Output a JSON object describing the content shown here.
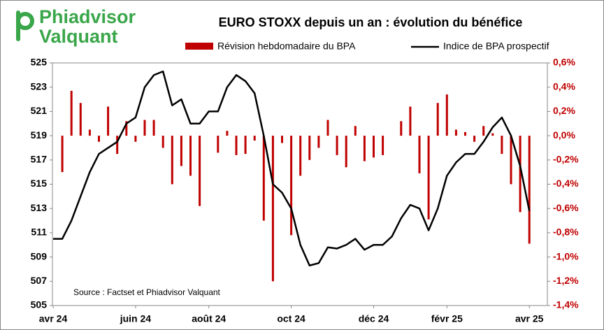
{
  "logo": {
    "line1": "Phiadvisor",
    "line2": "Valquant"
  },
  "chart_data": {
    "type": "bar_line",
    "title": "EURO STOXX depuis un an : évolution du bénéfice",
    "source": "Source : Factset et Phiadvisor Valquant",
    "categories": [
      "avr 24",
      null,
      null,
      null,
      null,
      null,
      null,
      null,
      null,
      "juin 24",
      null,
      null,
      null,
      null,
      null,
      null,
      null,
      "août 24",
      null,
      null,
      null,
      null,
      null,
      null,
      null,
      null,
      "oct 24",
      null,
      null,
      null,
      null,
      null,
      null,
      null,
      null,
      "déc 24",
      null,
      null,
      null,
      null,
      null,
      null,
      null,
      "févr 25",
      null,
      null,
      null,
      null,
      null,
      null,
      null,
      null,
      "avr 25"
    ],
    "series": [
      {
        "name": "Révision hebdomadaire du BPA",
        "type": "bar",
        "axis": "y2",
        "color": "#c00000",
        "values": [
          null,
          -0.3,
          0.37,
          0.27,
          0.05,
          -0.05,
          0.24,
          -0.15,
          0.12,
          -0.05,
          0.13,
          0.13,
          -0.1,
          -0.4,
          -0.25,
          -0.33,
          -0.58,
          null,
          -0.14,
          0.04,
          -0.16,
          -0.15,
          -0.04,
          -0.7,
          -1.2,
          -0.06,
          -0.82,
          -0.33,
          -0.2,
          -0.1,
          0.13,
          -0.16,
          -0.26,
          0.08,
          -0.21,
          -0.18,
          -0.16,
          null,
          0.12,
          0.24,
          -0.31,
          -0.69,
          0.27,
          0.34,
          0.05,
          0.03,
          -0.05,
          0.08,
          0.02,
          -0.15,
          -0.4,
          -0.63,
          -0.89
        ]
      },
      {
        "name": "Indice de BPA prospectif",
        "type": "line",
        "axis": "y",
        "color": "#000000",
        "values": [
          510.5,
          510.5,
          512,
          514,
          516,
          517.5,
          518,
          518.5,
          520,
          520.5,
          523,
          524,
          524.3,
          521.5,
          522,
          520,
          520,
          521,
          521,
          523,
          524,
          523.5,
          522.5,
          519,
          515,
          514.3,
          513,
          510,
          508.3,
          508.5,
          509.8,
          509.7,
          510,
          510.5,
          509.6,
          510,
          510,
          510.7,
          512.2,
          513.3,
          513,
          511.2,
          513,
          515.7,
          516.8,
          517.5,
          517.5,
          518.5,
          519.7,
          520.5,
          519,
          516.5,
          512.8
        ]
      }
    ],
    "ylim": [
      505,
      525
    ],
    "yticks": [
      505,
      507,
      509,
      511,
      513,
      515,
      517,
      519,
      521,
      523,
      525
    ],
    "y2lim": [
      -1.4,
      0.6
    ],
    "y2ticks": [
      {
        "value": -1.4,
        "label": "-1,4%"
      },
      {
        "value": -1.2,
        "label": "-1,2%"
      },
      {
        "value": -1.0,
        "label": "-1,0%"
      },
      {
        "value": -0.8,
        "label": "-0,8%"
      },
      {
        "value": -0.6,
        "label": "-0,6%"
      },
      {
        "value": -0.4,
        "label": "-0,4%"
      },
      {
        "value": -0.2,
        "label": "-0,2%"
      },
      {
        "value": 0,
        "label": "0,0%"
      },
      {
        "value": 0.2,
        "label": "0,2%"
      },
      {
        "value": 0.4,
        "label": "0,4%"
      },
      {
        "value": 0.6,
        "label": "0,6%"
      }
    ],
    "grid": false
  }
}
